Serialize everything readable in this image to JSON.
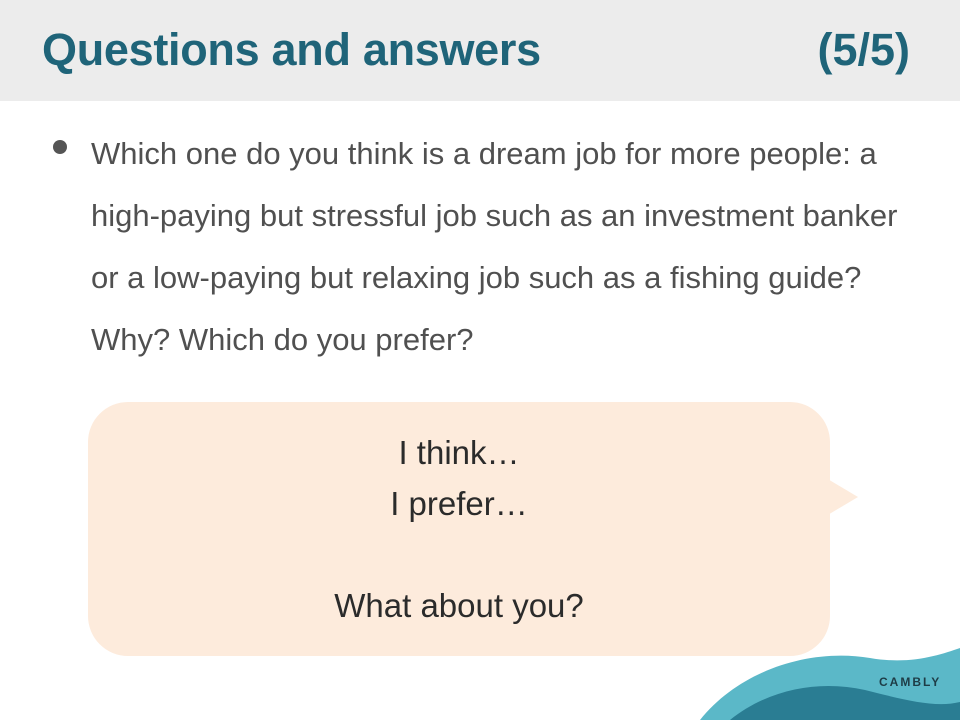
{
  "header": {
    "title": "Questions and answers",
    "page": "(5/5)"
  },
  "question": {
    "text": "Which one do you think is a dream job for more people: a high-paying but stressful job such as an investment banker or a low-paying but relaxing job such as a fishing guide? Why? Which do you prefer?"
  },
  "bubble": {
    "line1": "I think…",
    "line2": "I prefer…",
    "line3": "What about you?"
  },
  "brand": {
    "logo": "CAMBLY"
  },
  "colors": {
    "title": "#1f6479",
    "header_bg": "#ececec",
    "bubble_bg": "#fdebdc",
    "wave_light": "#5bb8c8",
    "wave_dark": "#2a7d93"
  }
}
